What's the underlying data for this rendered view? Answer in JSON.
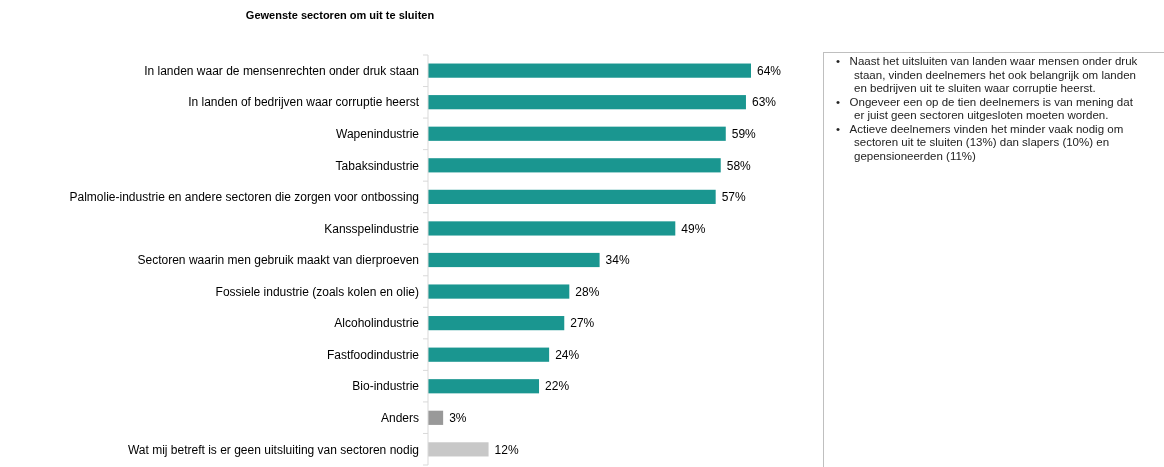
{
  "chart_data": {
    "type": "bar",
    "orientation": "horizontal",
    "title": "Gewenste sectoren om uit te sluiten",
    "categories": [
      "In landen waar de mensenrechten onder druk staan",
      "In landen of bedrijven waar corruptie heerst",
      "Wapenindustrie",
      "Tabaksindustrie",
      "Palmolie-industrie en andere sectoren die zorgen voor ontbossing",
      "Kansspelindustrie",
      "Sectoren waarin men gebruik maakt van dierproeven",
      "Fossiele industrie (zoals kolen en olie)",
      "Alcoholindustrie",
      "Fastfoodindustrie",
      "Bio-industrie",
      "Anders",
      "Wat mij betreft is er geen uitsluiting van sectoren nodig"
    ],
    "values": [
      64,
      63,
      59,
      58,
      57,
      49,
      34,
      28,
      27,
      24,
      22,
      3,
      12
    ],
    "value_labels": [
      "64%",
      "63%",
      "59%",
      "58%",
      "57%",
      "49%",
      "34%",
      "28%",
      "27%",
      "24%",
      "22%",
      "3%",
      "12%"
    ],
    "colors": [
      "#1a9690",
      "#1a9690",
      "#1a9690",
      "#1a9690",
      "#1a9690",
      "#1a9690",
      "#1a9690",
      "#1a9690",
      "#1a9690",
      "#1a9690",
      "#1a9690",
      "#999999",
      "#c8c8c8"
    ],
    "annotations": [
      "•   Naast het uitsluiten van landen waar mensen onder druk staan, vinden deelnemers het ook belangrijk om landen en bedrijven uit te sluiten waar corruptie heerst.",
      "•   Ongeveer een op de tien deelnemers is van mening dat er juist geen sectoren uitgesloten moeten worden.",
      "•   Actieve deelnemers vinden het minder vaak nodig om sectoren uit te sluiten (13%) dan slapers (10%) en gepensioneerden (11%)"
    ]
  }
}
